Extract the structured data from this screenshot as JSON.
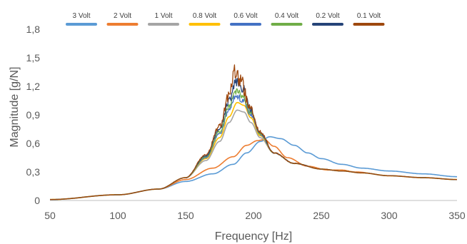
{
  "chart_data": {
    "type": "line",
    "xlabel": "Frequency [Hz]",
    "ylabel": "Magnitude [g/N]",
    "xlim": [
      50,
      350
    ],
    "ylim": [
      0,
      1.8
    ],
    "xticks": [
      "50",
      "100",
      "150",
      "200",
      "250",
      "300",
      "350"
    ],
    "yticks": [
      "0",
      "0,3",
      "0,6",
      "0,9",
      "1,2",
      "1,5",
      "1,8"
    ],
    "grid": false,
    "legend_position": "top",
    "series": [
      {
        "name": "3 Volt",
        "color": "#5b9bd5",
        "noise": 0,
        "x": [
          50,
          100,
          130,
          150,
          170,
          185,
          195,
          205,
          212,
          220,
          230,
          240,
          250,
          265,
          280,
          300,
          325,
          350
        ],
        "y": [
          0.01,
          0.06,
          0.12,
          0.2,
          0.28,
          0.38,
          0.5,
          0.62,
          0.67,
          0.65,
          0.58,
          0.5,
          0.44,
          0.38,
          0.34,
          0.31,
          0.28,
          0.25
        ]
      },
      {
        "name": "2 Volt",
        "color": "#ed7d31",
        "noise": 0,
        "x": [
          50,
          100,
          130,
          150,
          170,
          185,
          195,
          203,
          208,
          215,
          225,
          240,
          255,
          265,
          275,
          300,
          325,
          350
        ],
        "y": [
          0.01,
          0.06,
          0.12,
          0.22,
          0.34,
          0.46,
          0.58,
          0.63,
          0.64,
          0.57,
          0.45,
          0.36,
          0.32,
          0.32,
          0.3,
          0.26,
          0.24,
          0.22
        ]
      },
      {
        "name": "1 Volt",
        "color": "#a5a5a5",
        "noise": 0,
        "x": [
          50,
          100,
          130,
          150,
          165,
          175,
          182,
          188,
          193,
          198,
          205,
          215,
          230,
          250,
          265,
          280,
          300,
          325,
          350
        ],
        "y": [
          0.01,
          0.06,
          0.12,
          0.24,
          0.42,
          0.62,
          0.82,
          0.95,
          0.93,
          0.82,
          0.66,
          0.5,
          0.39,
          0.33,
          0.31,
          0.29,
          0.26,
          0.24,
          0.22
        ]
      },
      {
        "name": "0.8 Volt",
        "color": "#ffc000",
        "noise": 0,
        "x": [
          50,
          100,
          130,
          150,
          165,
          175,
          182,
          188,
          193,
          198,
          205,
          215,
          230,
          250,
          265,
          280,
          300,
          325,
          350
        ],
        "y": [
          0.01,
          0.06,
          0.12,
          0.24,
          0.44,
          0.66,
          0.88,
          1.03,
          1.0,
          0.87,
          0.68,
          0.5,
          0.39,
          0.33,
          0.31,
          0.29,
          0.26,
          0.24,
          0.22
        ]
      },
      {
        "name": "0.6 Volt",
        "color": "#4472c4",
        "noise": 0.015,
        "x": [
          50,
          100,
          130,
          150,
          165,
          175,
          182,
          187,
          192,
          198,
          205,
          215,
          230,
          250,
          265,
          280,
          300,
          325,
          350
        ],
        "y": [
          0.01,
          0.06,
          0.12,
          0.24,
          0.45,
          0.7,
          0.95,
          1.1,
          1.06,
          0.9,
          0.69,
          0.5,
          0.39,
          0.33,
          0.31,
          0.29,
          0.26,
          0.24,
          0.22
        ]
      },
      {
        "name": "0.4 Volt",
        "color": "#70ad47",
        "noise": 0.02,
        "x": [
          50,
          100,
          130,
          150,
          165,
          175,
          182,
          187,
          192,
          198,
          205,
          215,
          230,
          250,
          265,
          280,
          300,
          325,
          350
        ],
        "y": [
          0.01,
          0.06,
          0.12,
          0.24,
          0.46,
          0.72,
          0.99,
          1.16,
          1.1,
          0.92,
          0.7,
          0.5,
          0.39,
          0.33,
          0.31,
          0.29,
          0.26,
          0.24,
          0.22
        ]
      },
      {
        "name": "0.2 Volt",
        "color": "#264478",
        "noise": 0.025,
        "x": [
          50,
          100,
          130,
          150,
          165,
          175,
          182,
          187,
          192,
          198,
          205,
          215,
          230,
          250,
          265,
          280,
          300,
          325,
          350
        ],
        "y": [
          0.01,
          0.06,
          0.12,
          0.24,
          0.47,
          0.75,
          1.05,
          1.26,
          1.18,
          0.95,
          0.71,
          0.5,
          0.39,
          0.33,
          0.31,
          0.29,
          0.26,
          0.24,
          0.22
        ]
      },
      {
        "name": "0.1 Volt",
        "color": "#9e480e",
        "noise": 0.035,
        "x": [
          50,
          100,
          130,
          150,
          165,
          175,
          182,
          186,
          191,
          197,
          205,
          215,
          230,
          250,
          265,
          280,
          300,
          325,
          350
        ],
        "y": [
          0.01,
          0.06,
          0.12,
          0.24,
          0.48,
          0.78,
          1.1,
          1.34,
          1.25,
          0.98,
          0.72,
          0.5,
          0.39,
          0.33,
          0.31,
          0.29,
          0.26,
          0.24,
          0.22
        ]
      }
    ]
  }
}
